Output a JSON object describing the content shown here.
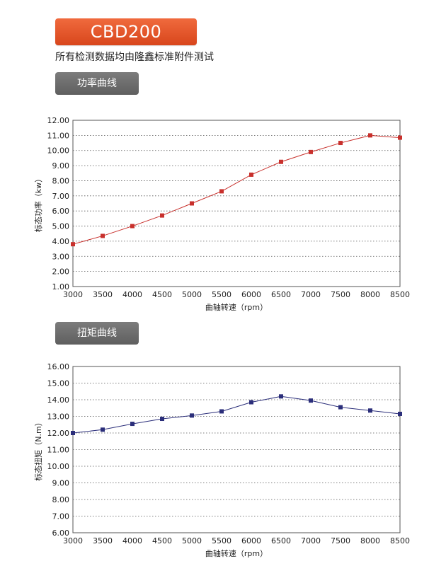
{
  "header": {
    "model": "CBD200",
    "note": "所有检测数据均由隆鑫标准附件测试"
  },
  "tabs": {
    "power": "功率曲线",
    "torque": "扭矩曲线"
  },
  "colors": {
    "badge": "#e0522a",
    "tab": "#6e6e6e",
    "power_series": "#c8302c",
    "torque_series": "#2b2e7a"
  },
  "chart_data": [
    {
      "type": "line",
      "xlabel": "曲轴转速（rpm）",
      "ylabel": "标态功率（kw）",
      "x": [
        3000,
        3500,
        4000,
        4500,
        5000,
        5500,
        6000,
        6500,
        7000,
        7500,
        8000,
        8500
      ],
      "x_ticks": [
        "3000",
        "3500",
        "4000",
        "4500",
        "5000",
        "5500",
        "6000",
        "6500",
        "7000",
        "7500",
        "8000",
        "8500"
      ],
      "y_ticks": [
        "12.00",
        "11.00",
        "10.00",
        "9.00",
        "8.00",
        "7.00",
        "6.00",
        "5.00",
        "4.00",
        "3.00",
        "2.00",
        "1.00"
      ],
      "ylim": [
        1,
        12
      ],
      "series": [
        {
          "values": [
            3.8,
            4.35,
            5.0,
            5.7,
            6.5,
            7.3,
            8.4,
            9.25,
            9.9,
            10.5,
            11.0,
            10.85
          ],
          "color": "#c8302c",
          "marker": "square"
        }
      ],
      "grid": "horizontal dotted"
    },
    {
      "type": "line",
      "xlabel": "曲轴转速（rpm）",
      "ylabel": "标态扭矩（N.m）",
      "x": [
        3000,
        3500,
        4000,
        4500,
        5000,
        5500,
        6000,
        6500,
        7000,
        7500,
        8000,
        8500
      ],
      "x_ticks": [
        "3000",
        "3500",
        "4000",
        "4500",
        "5000",
        "5500",
        "6000",
        "6500",
        "7000",
        "7500",
        "8000",
        "8500"
      ],
      "y_ticks": [
        "16.00",
        "15.00",
        "14.00",
        "13.00",
        "12.00",
        "11.00",
        "10.00",
        "9.00",
        "8.00",
        "7.00",
        "6.00"
      ],
      "ylim": [
        6,
        16
      ],
      "series": [
        {
          "values": [
            12.0,
            12.2,
            12.55,
            12.85,
            13.05,
            13.3,
            13.85,
            14.2,
            13.95,
            13.55,
            13.35,
            13.15
          ],
          "color": "#2b2e7a",
          "marker": "square"
        }
      ],
      "grid": "horizontal dotted"
    }
  ]
}
